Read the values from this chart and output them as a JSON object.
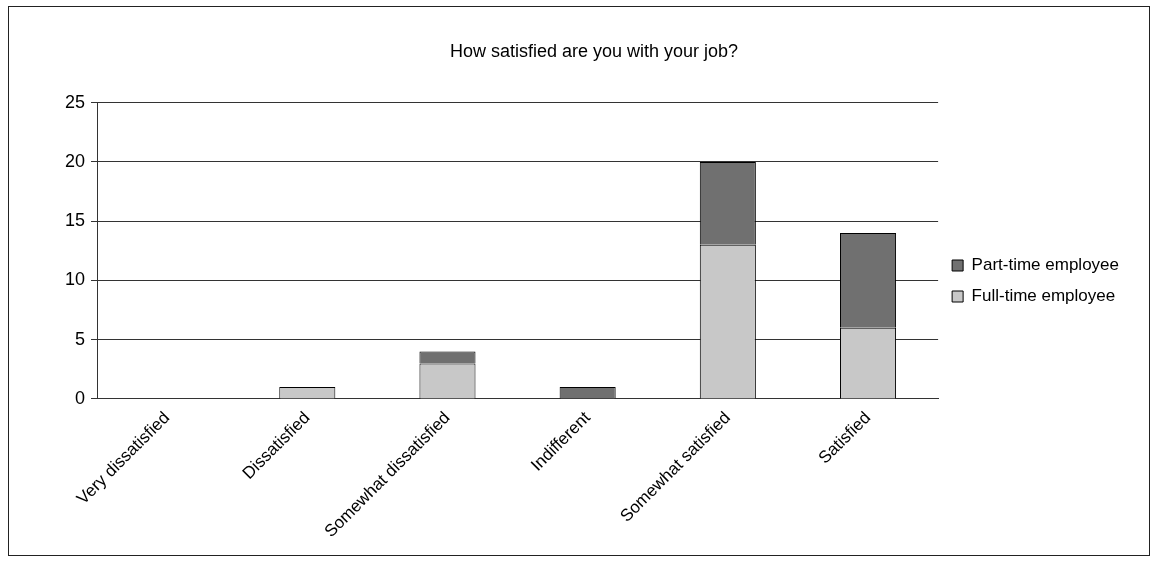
{
  "chart_data": {
    "type": "bar",
    "title": "How satisfied are you with your job?",
    "stacked": true,
    "categories": [
      "Very dissatisfied",
      "Dissatisfied",
      "Somewhat dissatisfied",
      "Indifferent",
      "Somewhat satisfied",
      "Satisfied"
    ],
    "series": [
      {
        "name": "Full-time employee",
        "color": "#c8c8c8",
        "values": [
          0,
          1,
          3,
          0,
          13,
          6
        ]
      },
      {
        "name": "Part-time employee",
        "color": "#707070",
        "values": [
          0,
          0,
          1,
          1,
          7,
          8
        ]
      }
    ],
    "ylim": [
      0,
      25
    ],
    "yticks": [
      0,
      5,
      10,
      15,
      20,
      25
    ],
    "grid": "y",
    "legend": "right"
  }
}
